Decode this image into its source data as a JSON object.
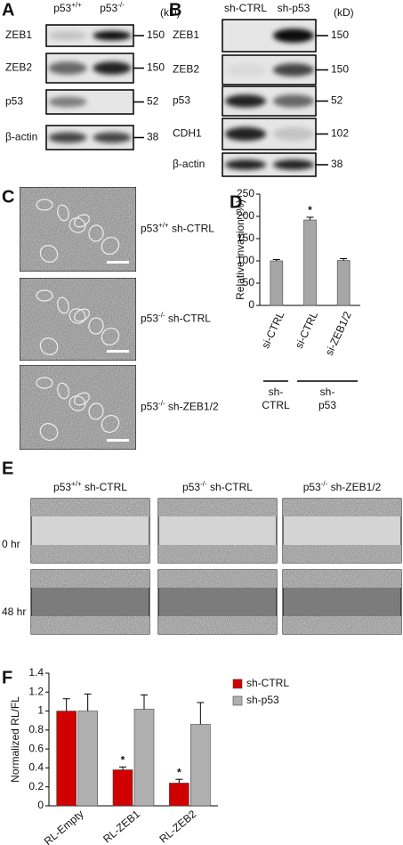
{
  "panels": {
    "A": {
      "label": "A",
      "unit": "(kD)",
      "columns": [
        {
          "base": "p53",
          "sup": "+/+"
        },
        {
          "base": "p53",
          "sup": "-/-"
        }
      ],
      "rows": [
        {
          "protein": "ZEB1",
          "marker": "150"
        },
        {
          "protein": "ZEB2",
          "marker": "150"
        },
        {
          "protein": "p53",
          "marker": "52"
        },
        {
          "protein": "β-actin",
          "marker": "38"
        }
      ]
    },
    "B": {
      "label": "B",
      "unit": "(kD)",
      "columns": [
        {
          "base": "sh-CTRL"
        },
        {
          "base": "sh-p53"
        }
      ],
      "rows": [
        {
          "protein": "ZEB1",
          "marker": "150"
        },
        {
          "protein": "ZEB2",
          "marker": "150"
        },
        {
          "protein": "p53",
          "marker": "52"
        },
        {
          "protein": "CDH1",
          "marker": "102"
        },
        {
          "protein": "β-actin",
          "marker": "38"
        }
      ]
    },
    "C": {
      "label": "C",
      "rows": [
        {
          "base": "p53",
          "sup": "+/+",
          "rest": " sh-CTRL"
        },
        {
          "base": "p53",
          "sup": "-/-",
          "rest": " sh-CTRL"
        },
        {
          "base": "p53",
          "sup": "-/-",
          "rest": " sh-ZEB1/2"
        }
      ]
    },
    "E": {
      "label": "E",
      "columns": [
        {
          "base": "p53",
          "sup": "+/+",
          "rest": " sh-CTRL"
        },
        {
          "base": "p53",
          "sup": "-/-",
          "rest": " sh-CTRL"
        },
        {
          "base": "p53",
          "sup": "-/-",
          "rest": " sh-ZEB1/2"
        }
      ],
      "rows": [
        "0 hr",
        "48 hr"
      ]
    }
  },
  "chart_data": [
    {
      "type": "bar",
      "label": "D",
      "y_label": "Relative invasion (%)",
      "categories": [
        "si-CTRL",
        "si-CTRL",
        "si-ZEB1/2"
      ],
      "values": [
        100,
        192,
        101
      ],
      "errors": [
        3,
        6,
        4
      ],
      "color": "#a6a6a6",
      "ylim": [
        0,
        250
      ],
      "yticks": [
        0,
        50,
        100,
        150,
        200,
        250
      ],
      "annotations": [
        "*"
      ],
      "groups": [
        [
          "sh-",
          "CTRL"
        ],
        [
          "sh-",
          "p53"
        ]
      ]
    },
    {
      "type": "bar",
      "label": "F",
      "y_label": "Normalized RL/FL",
      "categories": [
        "RL-Empty",
        "RL-ZEB1",
        "RL-ZEB2"
      ],
      "series": [
        {
          "name": "sh-CTRL",
          "color": "#d00000",
          "values": [
            1,
            0.38,
            0.24
          ],
          "errors": [
            0.13,
            0.03,
            0.04
          ]
        },
        {
          "name": "sh-p53",
          "color": "#b0b0b0",
          "values": [
            1,
            1.02,
            0.86
          ],
          "errors": [
            0.18,
            0.15,
            0.23
          ]
        }
      ],
      "ylim": [
        0,
        1.4
      ],
      "yticks": [
        0,
        0.2,
        0.4,
        0.6,
        0.8,
        1,
        1.2,
        1.4
      ],
      "legend": "right",
      "annotations": [
        "*",
        "*"
      ]
    }
  ]
}
